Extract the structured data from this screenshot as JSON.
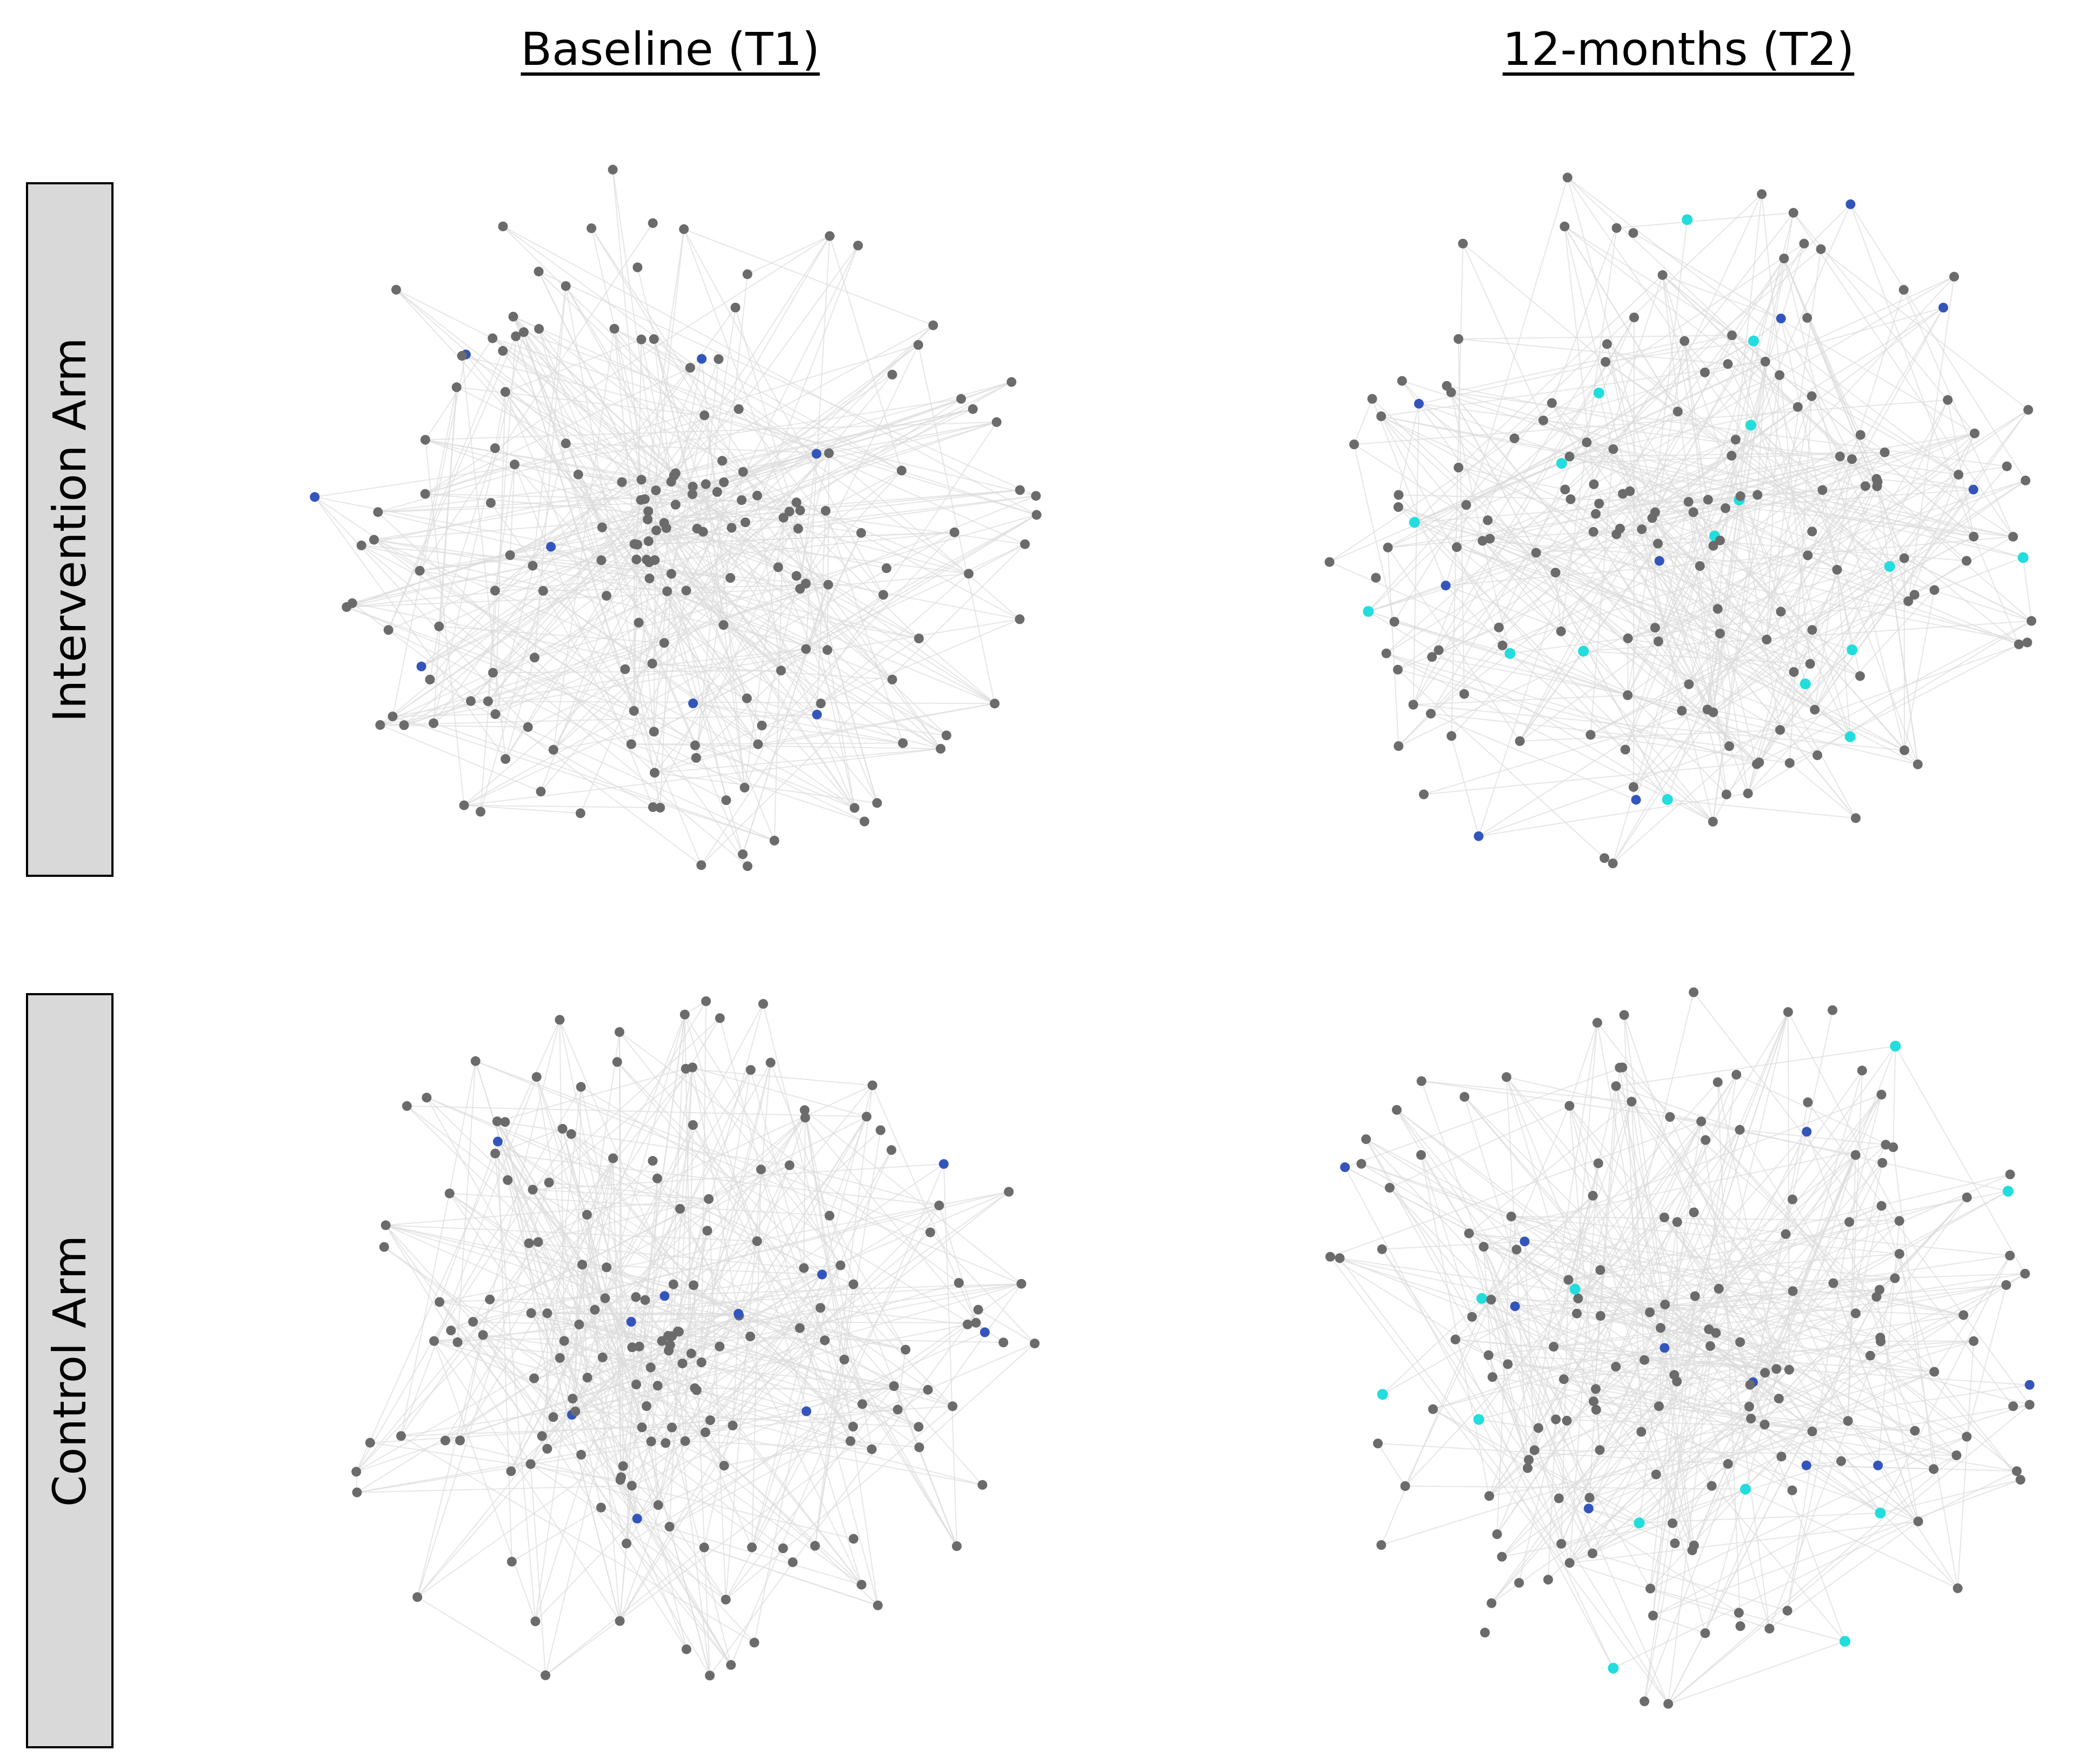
{
  "columns": {
    "t1": "Baseline (T1)",
    "t2": "12-months (T2)"
  },
  "rows": {
    "intervention": "Intervention Arm",
    "control": "Control Arm"
  },
  "colors": {
    "node_default": "#6b6b6b",
    "node_blue": "#3355bb",
    "node_cyan": "#22dddd",
    "edge": "#dcdcdc",
    "row_box": "#d9d9d9"
  },
  "panels": [
    {
      "id": "intervention-t1",
      "row": "intervention",
      "column": "t1",
      "blue_nodes": 8,
      "cyan_nodes": 0
    },
    {
      "id": "intervention-t2",
      "row": "intervention",
      "column": "t2",
      "blue_nodes": 9,
      "cyan_nodes": 17
    },
    {
      "id": "control-t1",
      "row": "control",
      "column": "t1",
      "blue_nodes": 10,
      "cyan_nodes": 0
    },
    {
      "id": "control-t2",
      "row": "control",
      "column": "t2",
      "blue_nodes": 10,
      "cyan_nodes": 11
    }
  ]
}
